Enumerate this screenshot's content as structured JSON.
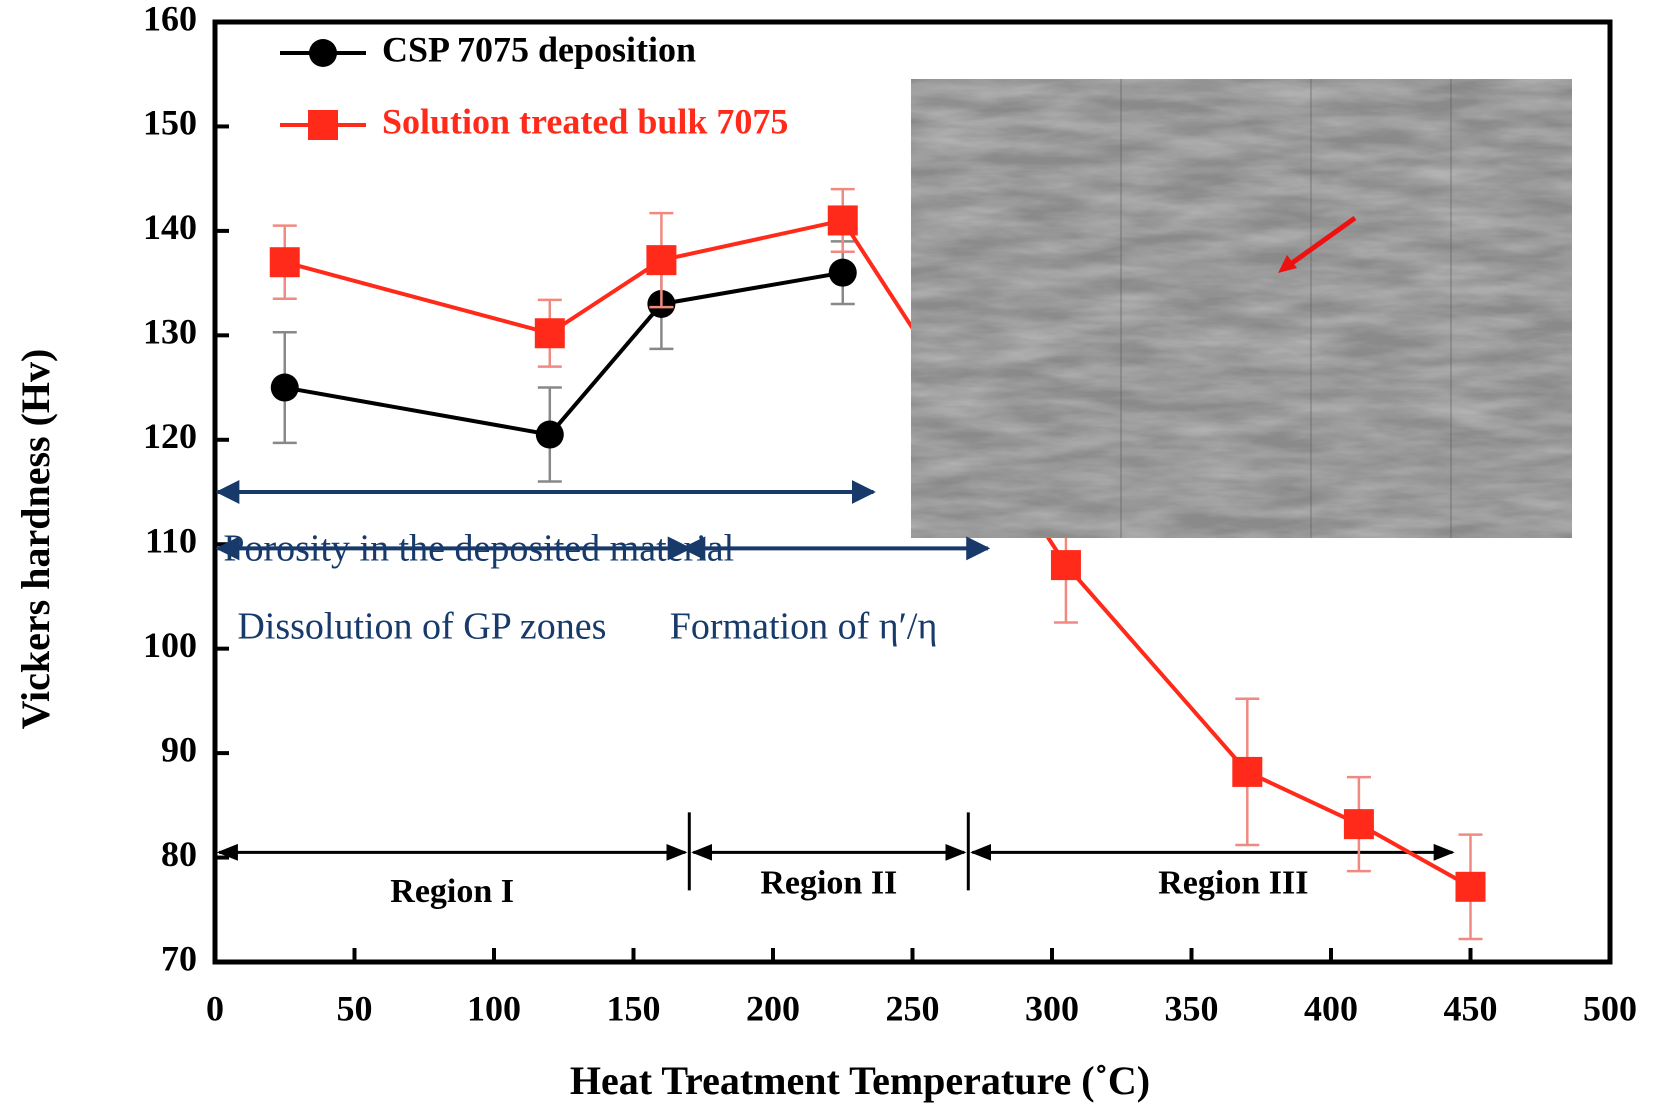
{
  "chart_data": {
    "type": "line",
    "x_label": "Heat Treatment Temperature (˚C)",
    "y_label": "Vickers hardness (Hv)",
    "xlim": [
      0,
      500
    ],
    "xticks": [
      0,
      50,
      100,
      150,
      200,
      250,
      300,
      350,
      400,
      450,
      500
    ],
    "ylim": [
      70,
      160
    ],
    "yticks": [
      70,
      80,
      90,
      100,
      110,
      120,
      130,
      140,
      150,
      160
    ],
    "legend": "upper left",
    "series": [
      {
        "name": "CSP 7075 deposition",
        "color": "#000000",
        "marker": "circle",
        "error_color": "#888888",
        "x": [
          25,
          120,
          160,
          225
        ],
        "values": [
          125,
          120.5,
          133,
          136
        ],
        "errors": [
          5.3,
          4.5,
          4.3,
          3
        ]
      },
      {
        "name": "Solution treated bulk 7075",
        "color": "#ff2a1a",
        "marker": "square",
        "error_color": "#f08a80",
        "x": [
          25,
          120,
          160,
          225,
          305,
          370,
          410,
          450
        ],
        "values": [
          137,
          130.2,
          137.2,
          141,
          108,
          88.2,
          83.2,
          77.2
        ],
        "errors": [
          3.5,
          3.2,
          4.5,
          3,
          5.5,
          7,
          4.5,
          5
        ]
      }
    ],
    "annotations": [
      "Region I",
      "Region II",
      "Region III",
      "Porosity in the deposited material",
      "Dissolution of GP zones",
      "Formation of η′/η"
    ]
  }
}
